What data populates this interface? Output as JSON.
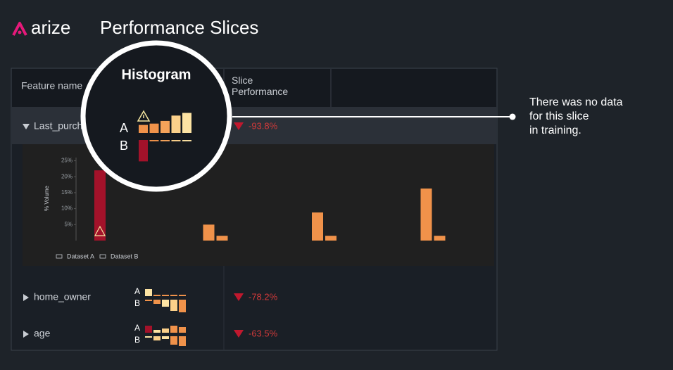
{
  "header": {
    "logo": "arize",
    "title": "Performance Slices"
  },
  "annotation": [
    "There was no data",
    "for this slice",
    "in training."
  ],
  "table": {
    "columns": [
      "Feature name",
      "Histogram",
      "Slice Performance"
    ],
    "series_labels": [
      "A",
      "B"
    ],
    "rows": [
      {
        "feature": "Last_purchase",
        "performance": "-93.8%",
        "histogram": {
          "a": [
            3,
            3.5,
            4.5,
            6.5,
            7.5
          ],
          "b": [
            8,
            0.5,
            0.5,
            0.5,
            0.5
          ],
          "a_colors": [
            "#f0924a",
            "#f0924a",
            "#f5a35a",
            "#fbd08a",
            "#fde3a3"
          ],
          "b_colors": [
            "#a3122a",
            "#f0924a",
            "#f5a35a",
            "#fbd08a",
            "#fde3a3"
          ]
        }
      },
      {
        "feature": "home_owner",
        "performance": "-78.2%",
        "histogram": {
          "a": [
            5,
            1,
            1,
            1,
            1
          ],
          "b": [
            1,
            3,
            5,
            8,
            9
          ],
          "a_colors": [
            "#fde3a3",
            "#f0924a",
            "#f0924a",
            "#f0924a",
            "#f0924a"
          ],
          "b_colors": [
            "#f0924a",
            "#f0924a",
            "#fde3a3",
            "#fbd08a",
            "#f0924a"
          ]
        }
      },
      {
        "feature": "age",
        "performance": "-63.5%",
        "histogram": {
          "a": [
            5,
            2,
            3,
            5,
            4
          ],
          "b": [
            1,
            3,
            2,
            6,
            7
          ],
          "a_colors": [
            "#a3122a",
            "#fde3a3",
            "#fbd08a",
            "#f0924a",
            "#f0924a"
          ],
          "b_colors": [
            "#fde3a3",
            "#fbd08a",
            "#fde3a3",
            "#f0924a",
            "#f0924a"
          ]
        }
      }
    ]
  },
  "chart_data": {
    "type": "bar",
    "y_label": "% Volume",
    "categories": [
      null,
      null,
      null,
      null
    ],
    "ylim": [
      0,
      26
    ],
    "yticks": [
      {
        "value": 5,
        "label": "5%"
      },
      {
        "value": 10,
        "label": "10%"
      },
      {
        "value": 15,
        "label": "15%"
      },
      {
        "value": 20,
        "label": "20%"
      },
      {
        "value": 25,
        "label": "25%"
      }
    ],
    "series": [
      {
        "name": "Dataset A",
        "colors": [
          "#a3122a",
          "#f0924a",
          "#f0924a",
          "#f0924a"
        ],
        "values": [
          22,
          5,
          8.8,
          16.3
        ]
      },
      {
        "name": "Dataset B",
        "colors": [
          "#f0924a",
          "#f0924a",
          "#f0924a",
          "#f0924a"
        ],
        "values": [
          null,
          1.5,
          1.5,
          1.5
        ]
      }
    ]
  }
}
